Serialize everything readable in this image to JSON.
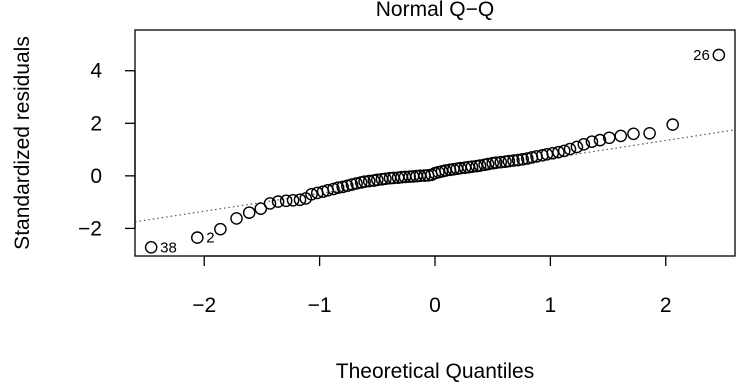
{
  "chart_data": {
    "type": "scatter",
    "title": "Normal Q−Q",
    "xlabel": "Theoretical Quantiles",
    "ylabel": "Standardized residuals",
    "xlim": [
      -2.6,
      2.6
    ],
    "ylim": [
      -3.05,
      5.55
    ],
    "xticks": [
      -2,
      -1,
      0,
      1,
      2
    ],
    "xtick_labels": [
      "−2",
      "−1",
      "0",
      "1",
      "2"
    ],
    "yticks": [
      -2,
      0,
      2,
      4
    ],
    "ytick_labels": [
      "−2",
      "0",
      "2",
      "4"
    ],
    "grid": false,
    "reference_line": {
      "style": "dotted",
      "points": [
        [
          -2.6,
          -1.75
        ],
        [
          2.6,
          1.75
        ]
      ]
    },
    "series": [
      {
        "marker": "open-circle",
        "x": [
          -2.46,
          -2.06,
          -1.86,
          -1.72,
          -1.61,
          -1.51,
          -1.43,
          -1.36,
          -1.29,
          -1.23,
          -1.17,
          -1.12,
          -1.07,
          -1.02,
          -0.97,
          -0.93,
          -0.88,
          -0.84,
          -0.8,
          -0.76,
          -0.72,
          -0.68,
          -0.64,
          -0.61,
          -0.57,
          -0.53,
          -0.5,
          -0.46,
          -0.43,
          -0.39,
          -0.36,
          -0.32,
          -0.29,
          -0.26,
          -0.22,
          -0.19,
          -0.16,
          -0.13,
          -0.09,
          -0.06,
          -0.03,
          0.0,
          0.03,
          0.06,
          0.09,
          0.13,
          0.16,
          0.19,
          0.22,
          0.26,
          0.29,
          0.32,
          0.36,
          0.39,
          0.43,
          0.46,
          0.5,
          0.53,
          0.57,
          0.61,
          0.64,
          0.68,
          0.72,
          0.76,
          0.8,
          0.84,
          0.88,
          0.93,
          0.97,
          1.02,
          1.07,
          1.12,
          1.17,
          1.23,
          1.29,
          1.36,
          1.43,
          1.51,
          1.61,
          1.72,
          1.86,
          2.06,
          2.46
        ],
        "y": [
          -2.72,
          -2.35,
          -2.03,
          -1.62,
          -1.4,
          -1.25,
          -1.05,
          -0.98,
          -0.95,
          -0.93,
          -0.91,
          -0.86,
          -0.7,
          -0.65,
          -0.6,
          -0.55,
          -0.5,
          -0.45,
          -0.42,
          -0.38,
          -0.33,
          -0.29,
          -0.25,
          -0.22,
          -0.2,
          -0.18,
          -0.15,
          -0.13,
          -0.11,
          -0.09,
          -0.08,
          -0.07,
          -0.05,
          -0.04,
          -0.03,
          -0.02,
          -0.01,
          0.0,
          0.01,
          0.02,
          0.04,
          0.1,
          0.14,
          0.17,
          0.2,
          0.23,
          0.25,
          0.27,
          0.29,
          0.31,
          0.33,
          0.35,
          0.37,
          0.39,
          0.42,
          0.45,
          0.48,
          0.5,
          0.52,
          0.54,
          0.56,
          0.58,
          0.6,
          0.63,
          0.66,
          0.7,
          0.74,
          0.78,
          0.82,
          0.86,
          0.9,
          0.95,
          1.02,
          1.1,
          1.2,
          1.3,
          1.36,
          1.45,
          1.52,
          1.6,
          1.62,
          1.95,
          4.6
        ]
      }
    ],
    "annotations": [
      {
        "text": "26",
        "x": 2.46,
        "y": 4.6,
        "side": "left"
      },
      {
        "text": "2",
        "x": -2.06,
        "y": -2.35,
        "side": "right"
      },
      {
        "text": "38",
        "x": -2.46,
        "y": -2.72,
        "side": "right"
      }
    ]
  }
}
